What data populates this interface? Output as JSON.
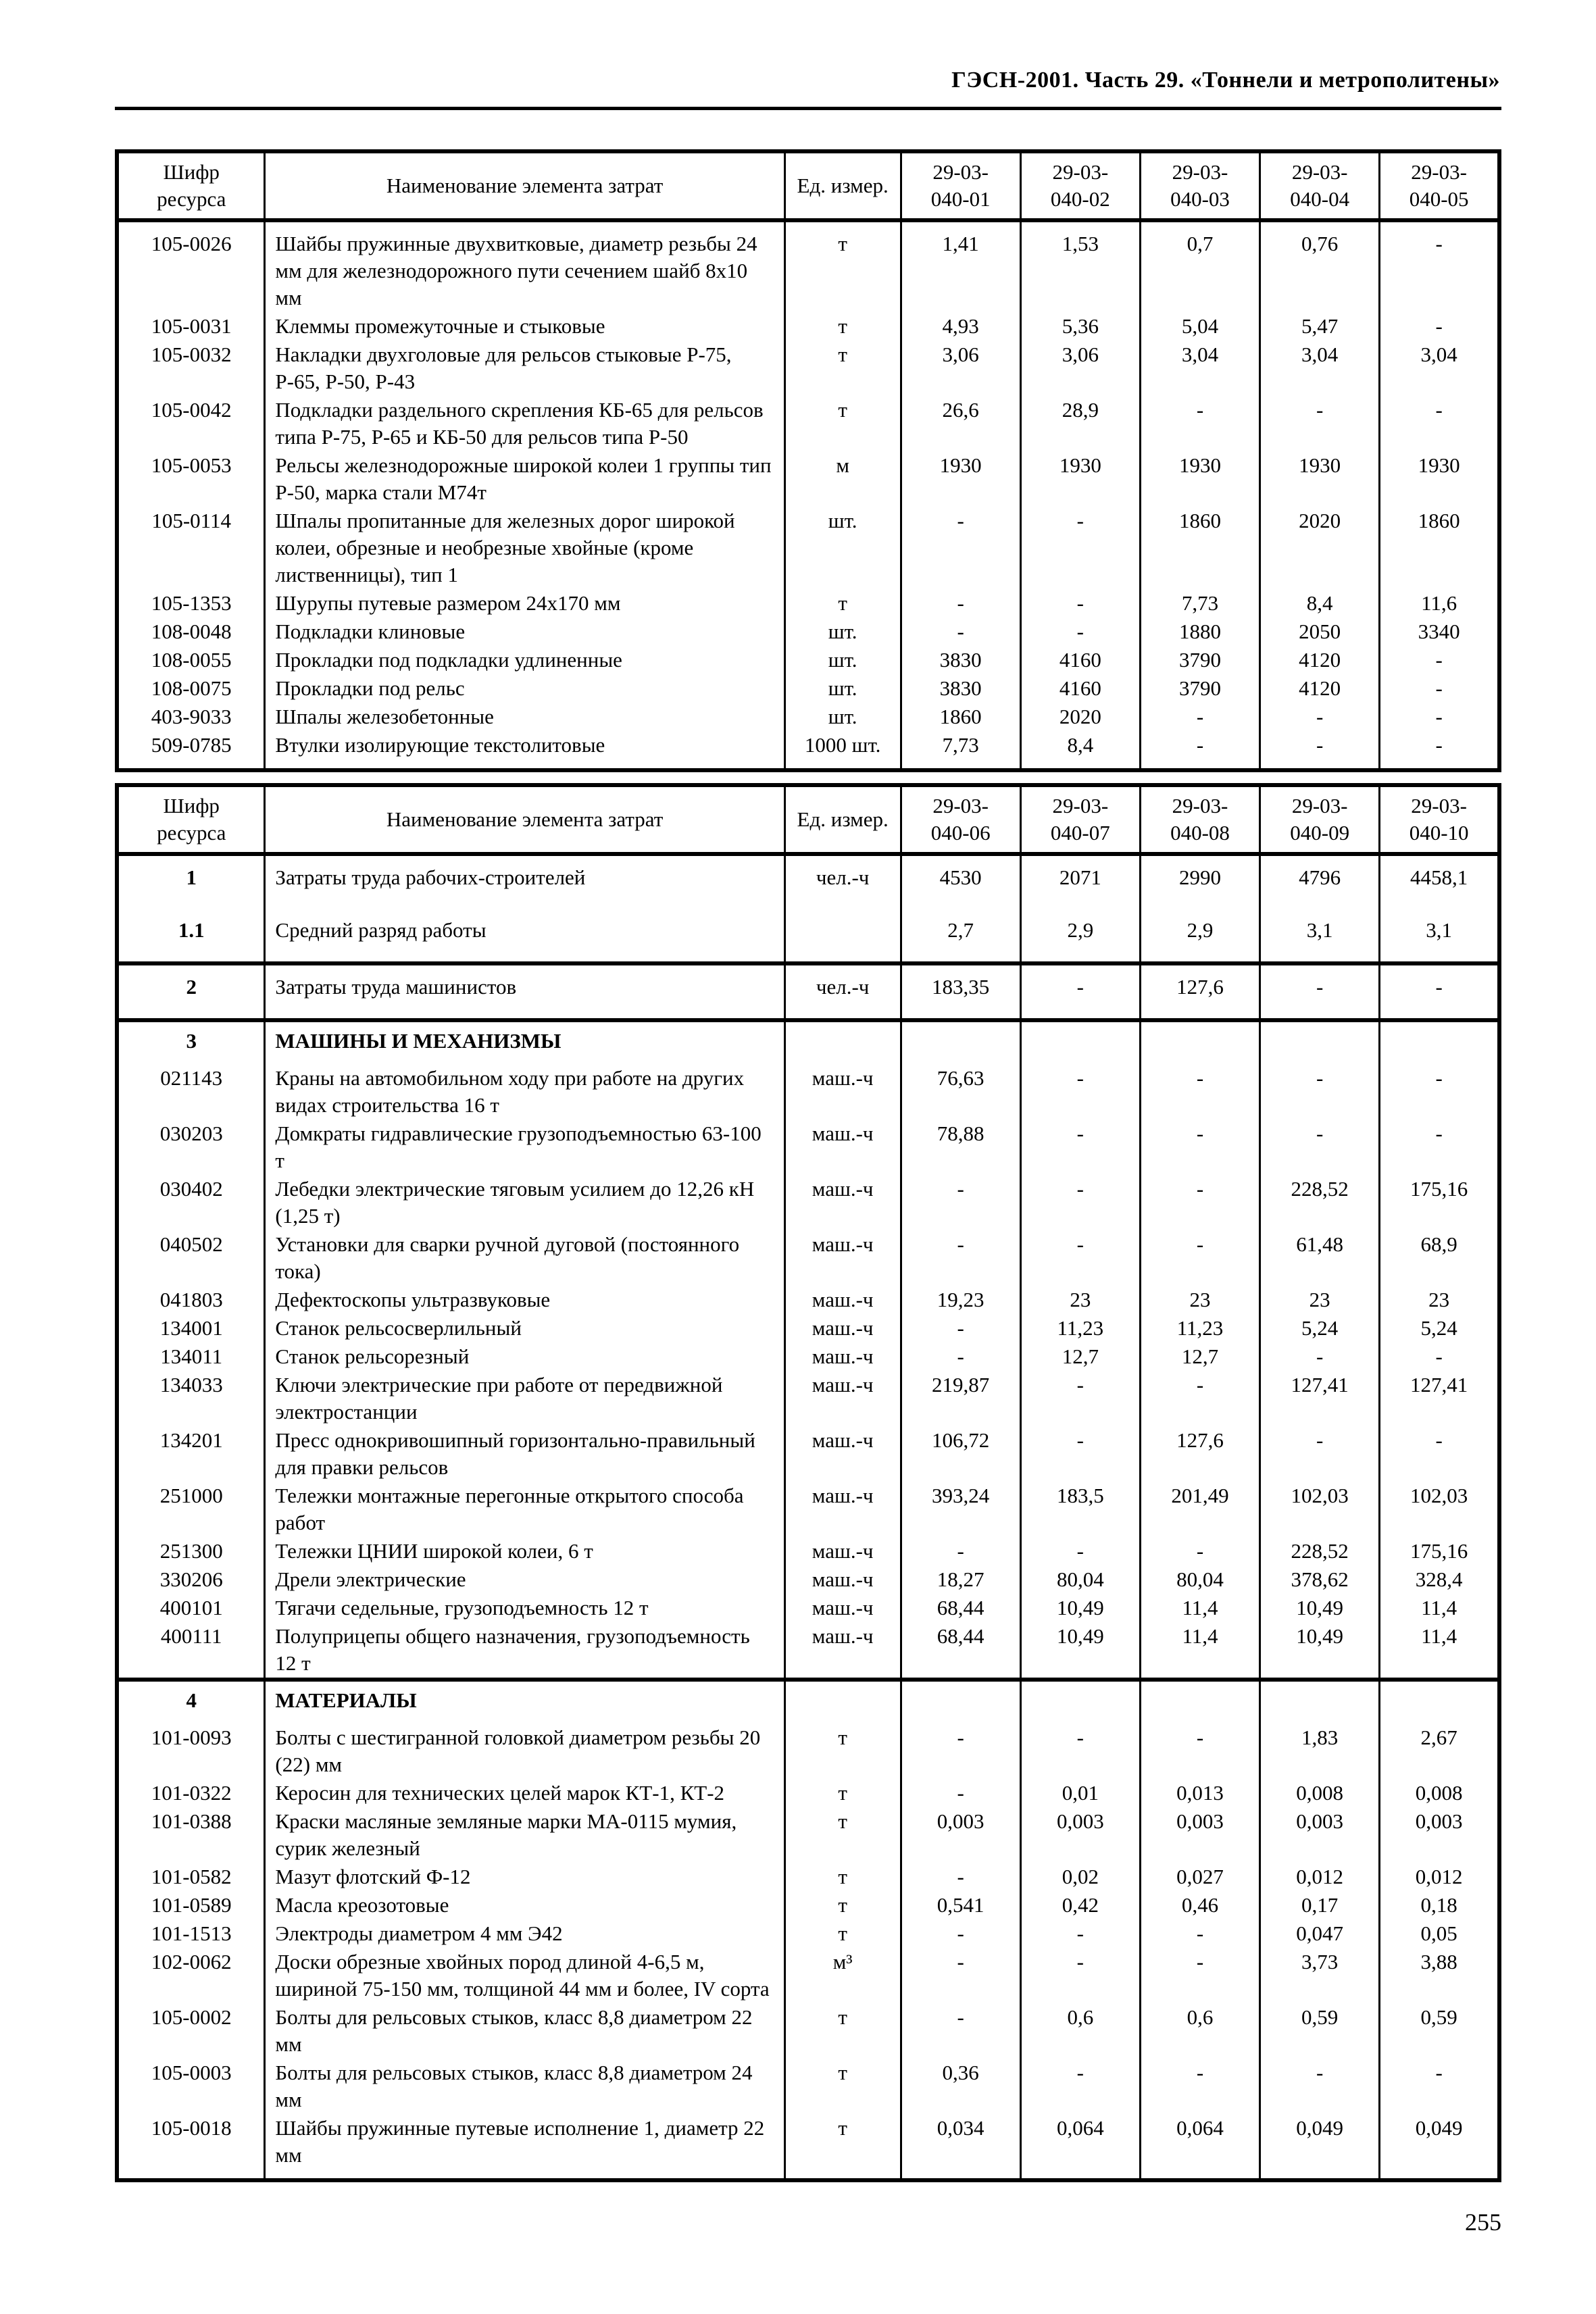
{
  "page": {
    "header_title": "ГЭСН-2001. Часть 29. «Тоннели и метрополитены»",
    "page_number": "255"
  },
  "table1": {
    "header": [
      "Шифр\nресурса",
      "Наименование элемента затрат",
      "Ед. измер.",
      "29-03-\n040-01",
      "29-03-\n040-02",
      "29-03-\n040-03",
      "29-03-\n040-04",
      "29-03-\n040-05"
    ],
    "rows": [
      {
        "code": "105-0026",
        "name": "Шайбы пружинные двухвитковые, диаметр резьбы 24 мм для железнодорожного пути сечением шайб 8x10 мм",
        "unit": "т",
        "values": [
          "1,41",
          "1,53",
          "0,7",
          "0,76",
          "-"
        ]
      },
      {
        "code": "105-0031",
        "name": "Клеммы промежуточные и стыковые",
        "unit": "т",
        "values": [
          "4,93",
          "5,36",
          "5,04",
          "5,47",
          "-"
        ]
      },
      {
        "code": "105-0032",
        "name": "Накладки двухголовые для рельсов стыковые Р-75, Р-65, Р-50, Р-43",
        "unit": "т",
        "values": [
          "3,06",
          "3,06",
          "3,04",
          "3,04",
          "3,04"
        ]
      },
      {
        "code": "105-0042",
        "name": "Подкладки раздельного скрепления КБ-65 для рельсов типа Р-75, Р-65 и КБ-50 для рельсов типа Р-50",
        "unit": "т",
        "values": [
          "26,6",
          "28,9",
          "-",
          "-",
          "-"
        ]
      },
      {
        "code": "105-0053",
        "name": "Рельсы железнодорожные широкой колеи 1 группы тип Р-50, марка стали М74т",
        "unit": "м",
        "values": [
          "1930",
          "1930",
          "1930",
          "1930",
          "1930"
        ]
      },
      {
        "code": "105-0114",
        "name": "Шпалы пропитанные для железных дорог широкой колеи, обрезные и необрезные хвойные (кроме лиственницы), тип 1",
        "unit": "шт.",
        "values": [
          "-",
          "-",
          "1860",
          "2020",
          "1860"
        ]
      },
      {
        "code": "105-1353",
        "name": "Шурупы путевые размером 24x170 мм",
        "unit": "т",
        "values": [
          "-",
          "-",
          "7,73",
          "8,4",
          "11,6"
        ]
      },
      {
        "code": "108-0048",
        "name": "Подкладки клиновые",
        "unit": "шт.",
        "values": [
          "-",
          "-",
          "1880",
          "2050",
          "3340"
        ]
      },
      {
        "code": "108-0055",
        "name": "Прокладки под подкладки удлиненные",
        "unit": "шт.",
        "values": [
          "3830",
          "4160",
          "3790",
          "4120",
          "-"
        ]
      },
      {
        "code": "108-0075",
        "name": "Прокладки под рельс",
        "unit": "шт.",
        "values": [
          "3830",
          "4160",
          "3790",
          "4120",
          "-"
        ]
      },
      {
        "code": "403-9033",
        "name": "Шпалы железобетонные",
        "unit": "шт.",
        "values": [
          "1860",
          "2020",
          "-",
          "-",
          "-"
        ]
      },
      {
        "code": "509-0785",
        "name": "Втулки изолирующие текстолитовые",
        "unit": "1000 шт.",
        "values": [
          "7,73",
          "8,4",
          "-",
          "-",
          "-"
        ]
      }
    ]
  },
  "table2": {
    "header": [
      "Шифр\nресурса",
      "Наименование элемента затрат",
      "Ед. измер.",
      "29-03-\n040-06",
      "29-03-\n040-07",
      "29-03-\n040-08",
      "29-03-\n040-09",
      "29-03-\n040-10"
    ],
    "rows": [
      {
        "code": "1",
        "bold_code": true,
        "spacious": true,
        "name": "Затраты труда рабочих-строителей",
        "unit": "чел.-ч",
        "values": [
          "4530",
          "2071",
          "2990",
          "4796",
          "4458,1"
        ]
      },
      {
        "code": "1.1",
        "bold_code": true,
        "spacious": true,
        "name": "Средний разряд работы",
        "unit": "",
        "values": [
          "2,7",
          "2,9",
          "2,9",
          "3,1",
          "3,1"
        ]
      },
      {
        "code": "2",
        "bold_code": true,
        "thick_top": true,
        "spacious": true,
        "name": "Затраты труда машинистов",
        "unit": "чел.-ч",
        "values": [
          "183,35",
          "-",
          "127,6",
          "-",
          "-"
        ]
      },
      {
        "code": "3",
        "bold_code": true,
        "bold_name": true,
        "thick_top": true,
        "section_title": true,
        "name": "МАШИНЫ И МЕХАНИЗМЫ",
        "unit": "",
        "values": [
          "",
          "",
          "",
          "",
          ""
        ]
      },
      {
        "code": "021143",
        "name": "Краны на автомобильном ходу при работе на других видах строительства 16 т",
        "unit": "маш.-ч",
        "values": [
          "76,63",
          "-",
          "-",
          "-",
          "-"
        ]
      },
      {
        "code": "030203",
        "name": "Домкраты гидравлические грузоподъемностью 63-100 т",
        "unit": "маш.-ч",
        "values": [
          "78,88",
          "-",
          "-",
          "-",
          "-"
        ]
      },
      {
        "code": "030402",
        "name": "Лебедки электрические тяговым усилием до 12,26 кН (1,25 т)",
        "unit": "маш.-ч",
        "values": [
          "-",
          "-",
          "-",
          "228,52",
          "175,16"
        ]
      },
      {
        "code": "040502",
        "name": "Установки для сварки ручной дуговой (постоянного тока)",
        "unit": "маш.-ч",
        "values": [
          "-",
          "-",
          "-",
          "61,48",
          "68,9"
        ]
      },
      {
        "code": "041803",
        "name": "Дефектоскопы ультразвуковые",
        "unit": "маш.-ч",
        "values": [
          "19,23",
          "23",
          "23",
          "23",
          "23"
        ]
      },
      {
        "code": "134001",
        "name": "Станок рельсосверлильный",
        "unit": "маш.-ч",
        "values": [
          "-",
          "11,23",
          "11,23",
          "5,24",
          "5,24"
        ]
      },
      {
        "code": "134011",
        "name": "Станок рельсорезный",
        "unit": "маш.-ч",
        "values": [
          "-",
          "12,7",
          "12,7",
          "-",
          "-"
        ]
      },
      {
        "code": "134033",
        "name": "Ключи электрические при работе от передвижной электростанции",
        "unit": "маш.-ч",
        "values": [
          "219,87",
          "-",
          "-",
          "127,41",
          "127,41"
        ]
      },
      {
        "code": "134201",
        "name": "Пресс однокривошипный горизонтально-правильный для правки рельсов",
        "unit": "маш.-ч",
        "values": [
          "106,72",
          "-",
          "127,6",
          "-",
          "-"
        ]
      },
      {
        "code": "251000",
        "name": "Тележки монтажные перегонные открытого способа работ",
        "unit": "маш.-ч",
        "values": [
          "393,24",
          "183,5",
          "201,49",
          "102,03",
          "102,03"
        ]
      },
      {
        "code": "251300",
        "name": "Тележки ЦНИИ широкой колеи, 6 т",
        "unit": "маш.-ч",
        "values": [
          "-",
          "-",
          "-",
          "228,52",
          "175,16"
        ]
      },
      {
        "code": "330206",
        "name": "Дрели электрические",
        "unit": "маш.-ч",
        "values": [
          "18,27",
          "80,04",
          "80,04",
          "378,62",
          "328,4"
        ]
      },
      {
        "code": "400101",
        "name": "Тягачи седельные, грузоподъемность 12 т",
        "unit": "маш.-ч",
        "values": [
          "68,44",
          "10,49",
          "11,4",
          "10,49",
          "11,4"
        ]
      },
      {
        "code": "400111",
        "name": "Полуприцепы общего назначения, грузоподъемность 12 т",
        "unit": "маш.-ч",
        "values": [
          "68,44",
          "10,49",
          "11,4",
          "10,49",
          "11,4"
        ]
      },
      {
        "code": "4",
        "bold_code": true,
        "bold_name": true,
        "thick_top": true,
        "section_title": true,
        "name": "МАТЕРИАЛЫ",
        "unit": "",
        "values": [
          "",
          "",
          "",
          "",
          ""
        ]
      },
      {
        "code": "101-0093",
        "name": "Болты с шестигранной головкой диаметром резьбы 20 (22) мм",
        "unit": "т",
        "values": [
          "-",
          "-",
          "-",
          "1,83",
          "2,67"
        ]
      },
      {
        "code": "101-0322",
        "name": "Керосин для технических целей марок КТ-1, КТ-2",
        "unit": "т",
        "values": [
          "-",
          "0,01",
          "0,013",
          "0,008",
          "0,008"
        ]
      },
      {
        "code": "101-0388",
        "name": "Краски масляные земляные марки МА-0115 мумия, сурик железный",
        "unit": "т",
        "values": [
          "0,003",
          "0,003",
          "0,003",
          "0,003",
          "0,003"
        ]
      },
      {
        "code": "101-0582",
        "name": "Мазут флотский Ф-12",
        "unit": "т",
        "values": [
          "-",
          "0,02",
          "0,027",
          "0,012",
          "0,012"
        ]
      },
      {
        "code": "101-0589",
        "name": "Масла креозотовые",
        "unit": "т",
        "values": [
          "0,541",
          "0,42",
          "0,46",
          "0,17",
          "0,18"
        ]
      },
      {
        "code": "101-1513",
        "name": "Электроды диаметром 4 мм Э42",
        "unit": "т",
        "values": [
          "-",
          "-",
          "-",
          "0,047",
          "0,05"
        ]
      },
      {
        "code": "102-0062",
        "name": "Доски обрезные хвойных пород длиной 4-6,5 м, шириной 75-150 мм, толщиной 44 мм и более, IV сорта",
        "unit": "м³",
        "values": [
          "-",
          "-",
          "-",
          "3,73",
          "3,88"
        ]
      },
      {
        "code": "105-0002",
        "name": "Болты для рельсовых стыков, класс 8,8 диаметром 22 мм",
        "unit": "т",
        "values": [
          "-",
          "0,6",
          "0,6",
          "0,59",
          "0,59"
        ]
      },
      {
        "code": "105-0003",
        "name": "Болты для рельсовых стыков, класс 8,8 диаметром 24 мм",
        "unit": "т",
        "values": [
          "0,36",
          "-",
          "-",
          "-",
          "-"
        ]
      },
      {
        "code": "105-0018",
        "name": "Шайбы пружинные путевые исполнение 1, диаметр 22 мм",
        "unit": "т",
        "values": [
          "0,034",
          "0,064",
          "0,064",
          "0,049",
          "0,049"
        ]
      }
    ]
  }
}
